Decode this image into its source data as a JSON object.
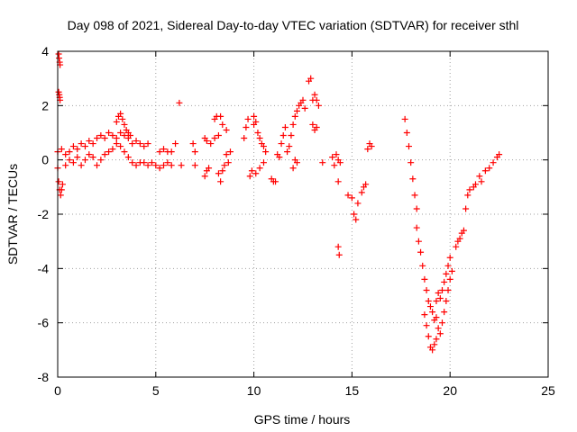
{
  "chart_data": {
    "type": "scatter",
    "title": "Day 098 of 2021, Sidereal Day-to-day VTEC variation (SDTVAR) for receiver sthl",
    "xlabel": "GPS time / hours",
    "ylabel": "SDTVAR / TECUs",
    "xlim": [
      0,
      25
    ],
    "ylim": [
      -8,
      4
    ],
    "xticks": [
      0,
      5,
      10,
      15,
      20,
      25
    ],
    "yticks": [
      -8,
      -6,
      -4,
      -2,
      0,
      2,
      4
    ],
    "grid": true,
    "marker": "+",
    "color": "#ff0000",
    "series_segments": [
      {
        "name": "start-spike-high",
        "points": [
          [
            0.05,
            3.9
          ],
          [
            0.07,
            3.75
          ],
          [
            0.1,
            3.6
          ],
          [
            0.12,
            3.5
          ]
        ]
      },
      {
        "name": "start-spike-mid",
        "points": [
          [
            0.05,
            2.5
          ],
          [
            0.08,
            2.4
          ],
          [
            0.1,
            2.3
          ],
          [
            0.12,
            2.2
          ]
        ]
      },
      {
        "name": "start-low",
        "points": [
          [
            0.0,
            -0.3
          ],
          [
            0.05,
            -0.8
          ],
          [
            0.1,
            -1.1
          ],
          [
            0.15,
            -1.3
          ],
          [
            0.2,
            -1.1
          ],
          [
            0.25,
            -0.9
          ]
        ]
      },
      {
        "name": "band-0-3",
        "points": [
          [
            0.0,
            0.3
          ],
          [
            0.2,
            0.4
          ],
          [
            0.4,
            0.2
          ],
          [
            0.6,
            0.3
          ],
          [
            0.8,
            0.5
          ],
          [
            1.0,
            0.4
          ],
          [
            1.2,
            0.6
          ],
          [
            1.4,
            0.5
          ],
          [
            1.6,
            0.7
          ],
          [
            1.8,
            0.6
          ],
          [
            2.0,
            0.8
          ],
          [
            2.2,
            0.9
          ],
          [
            2.4,
            0.8
          ],
          [
            2.6,
            1.0
          ],
          [
            2.8,
            0.9
          ],
          [
            3.0,
            0.8
          ],
          [
            3.2,
            1.0
          ],
          [
            3.4,
            0.9
          ],
          [
            3.6,
            0.8
          ],
          [
            3.8,
            0.6
          ],
          [
            4.0,
            0.7
          ],
          [
            4.2,
            0.6
          ],
          [
            4.4,
            0.5
          ],
          [
            4.6,
            0.6
          ]
        ]
      },
      {
        "name": "band-0-3-lower",
        "points": [
          [
            0.4,
            -0.2
          ],
          [
            0.6,
            0.0
          ],
          [
            0.8,
            -0.1
          ],
          [
            1.0,
            0.1
          ],
          [
            1.2,
            -0.2
          ],
          [
            1.4,
            0.0
          ],
          [
            1.6,
            0.2
          ],
          [
            1.8,
            0.1
          ],
          [
            2.0,
            -0.2
          ],
          [
            2.2,
            0.0
          ],
          [
            2.4,
            0.2
          ],
          [
            2.6,
            0.3
          ],
          [
            2.8,
            0.4
          ],
          [
            3.0,
            0.6
          ],
          [
            3.2,
            0.5
          ],
          [
            3.4,
            0.3
          ],
          [
            3.6,
            0.1
          ],
          [
            3.8,
            -0.1
          ],
          [
            4.0,
            -0.2
          ],
          [
            4.2,
            -0.1
          ]
        ]
      },
      {
        "name": "peak-3.2",
        "points": [
          [
            3.0,
            1.4
          ],
          [
            3.1,
            1.6
          ],
          [
            3.2,
            1.7
          ],
          [
            3.3,
            1.5
          ],
          [
            3.4,
            1.3
          ],
          [
            3.5,
            1.1
          ],
          [
            3.6,
            1.0
          ],
          [
            3.7,
            0.9
          ]
        ]
      },
      {
        "name": "band-4-6",
        "points": [
          [
            4.4,
            -0.1
          ],
          [
            4.6,
            -0.2
          ],
          [
            4.8,
            -0.1
          ],
          [
            5.0,
            -0.2
          ],
          [
            5.2,
            -0.3
          ],
          [
            5.4,
            -0.2
          ],
          [
            5.6,
            -0.1
          ],
          [
            5.8,
            -0.2
          ],
          [
            5.2,
            0.3
          ],
          [
            5.4,
            0.4
          ],
          [
            5.6,
            0.3
          ],
          [
            5.8,
            0.3
          ],
          [
            6.0,
            0.6
          ]
        ]
      },
      {
        "name": "isolated-6.2",
        "points": [
          [
            6.2,
            2.1
          ],
          [
            6.3,
            -0.2
          ]
        ]
      },
      {
        "name": "band-6.8-8.8",
        "points": [
          [
            6.9,
            0.6
          ],
          [
            7.0,
            0.3
          ],
          [
            7.0,
            -0.2
          ],
          [
            7.5,
            -0.6
          ],
          [
            7.6,
            -0.4
          ],
          [
            7.7,
            -0.3
          ],
          [
            7.5,
            0.8
          ],
          [
            7.6,
            0.7
          ],
          [
            7.8,
            0.6
          ],
          [
            8.0,
            0.8
          ],
          [
            8.2,
            0.9
          ],
          [
            8.4,
            1.3
          ],
          [
            8.6,
            1.1
          ],
          [
            8.2,
            -0.5
          ],
          [
            8.3,
            -0.8
          ],
          [
            8.4,
            -0.4
          ],
          [
            8.5,
            -0.2
          ],
          [
            8.6,
            0.2
          ],
          [
            8.7,
            -0.1
          ],
          [
            8.8,
            0.3
          ],
          [
            8.0,
            1.5
          ],
          [
            8.1,
            1.6
          ],
          [
            8.3,
            1.6
          ]
        ]
      },
      {
        "name": "band-9.5-11",
        "points": [
          [
            9.5,
            0.8
          ],
          [
            9.6,
            1.2
          ],
          [
            9.7,
            1.5
          ],
          [
            9.8,
            -0.6
          ],
          [
            9.9,
            -0.4
          ],
          [
            10.0,
            1.6
          ],
          [
            10.0,
            1.3
          ],
          [
            10.1,
            1.4
          ],
          [
            10.2,
            1.0
          ],
          [
            10.3,
            0.8
          ],
          [
            10.4,
            0.6
          ],
          [
            10.5,
            0.5
          ],
          [
            10.6,
            0.3
          ],
          [
            10.1,
            -0.5
          ],
          [
            10.3,
            -0.3
          ],
          [
            10.5,
            -0.1
          ]
        ]
      },
      {
        "name": "band-11-12.5",
        "points": [
          [
            10.9,
            -0.7
          ],
          [
            11.0,
            -0.8
          ],
          [
            11.1,
            -0.8
          ],
          [
            11.2,
            0.2
          ],
          [
            11.3,
            0.1
          ],
          [
            11.4,
            0.6
          ],
          [
            11.5,
            0.9
          ],
          [
            11.6,
            1.2
          ],
          [
            11.7,
            0.3
          ],
          [
            11.8,
            0.5
          ],
          [
            11.9,
            0.9
          ],
          [
            12.0,
            1.3
          ],
          [
            12.1,
            1.6
          ],
          [
            12.2,
            1.8
          ],
          [
            12.3,
            2.0
          ],
          [
            12.4,
            2.1
          ],
          [
            12.5,
            2.2
          ],
          [
            12.6,
            1.9
          ],
          [
            12.0,
            -0.3
          ],
          [
            12.1,
            0.0
          ],
          [
            12.2,
            -0.1
          ]
        ]
      },
      {
        "name": "peak-12.8",
        "points": [
          [
            12.8,
            2.9
          ],
          [
            12.9,
            3.0
          ],
          [
            13.0,
            2.2
          ],
          [
            13.1,
            2.4
          ],
          [
            13.2,
            2.2
          ],
          [
            13.3,
            2.0
          ],
          [
            13.0,
            1.3
          ],
          [
            13.1,
            1.1
          ],
          [
            13.2,
            1.2
          ]
        ]
      },
      {
        "name": "isolated-13.5",
        "points": [
          [
            13.5,
            -0.1
          ]
        ]
      },
      {
        "name": "band-14",
        "points": [
          [
            14.0,
            0.1
          ],
          [
            14.1,
            -0.2
          ],
          [
            14.2,
            0.2
          ],
          [
            14.3,
            0.0
          ],
          [
            14.4,
            -0.1
          ],
          [
            14.3,
            -0.8
          ],
          [
            14.3,
            -3.2
          ],
          [
            14.35,
            -3.5
          ]
        ]
      },
      {
        "name": "band-14.8-16",
        "points": [
          [
            14.8,
            -1.3
          ],
          [
            15.0,
            -1.4
          ],
          [
            15.1,
            -2.0
          ],
          [
            15.2,
            -2.2
          ],
          [
            15.3,
            -1.6
          ],
          [
            15.5,
            -1.2
          ],
          [
            15.6,
            -1.0
          ],
          [
            15.7,
            -0.9
          ],
          [
            15.8,
            0.4
          ],
          [
            15.9,
            0.6
          ],
          [
            16.0,
            0.5
          ]
        ]
      },
      {
        "name": "descending-arm",
        "points": [
          [
            17.7,
            1.5
          ],
          [
            17.8,
            1.0
          ],
          [
            17.9,
            0.5
          ],
          [
            18.0,
            -0.1
          ],
          [
            18.1,
            -0.7
          ],
          [
            18.2,
            -1.3
          ],
          [
            18.3,
            -1.8
          ],
          [
            18.3,
            -2.5
          ],
          [
            18.4,
            -3.0
          ],
          [
            18.5,
            -3.4
          ],
          [
            18.6,
            -3.9
          ],
          [
            18.7,
            -4.4
          ],
          [
            18.8,
            -4.8
          ],
          [
            18.9,
            -5.2
          ],
          [
            18.7,
            -5.7
          ],
          [
            18.8,
            -6.1
          ],
          [
            18.9,
            -6.5
          ],
          [
            19.0,
            -6.9
          ],
          [
            19.1,
            -7.0
          ],
          [
            19.2,
            -6.8
          ],
          [
            19.3,
            -6.6
          ]
        ]
      },
      {
        "name": "trough-cluster",
        "points": [
          [
            19.0,
            -5.4
          ],
          [
            19.1,
            -5.6
          ],
          [
            19.2,
            -5.9
          ],
          [
            19.3,
            -5.8
          ],
          [
            19.4,
            -6.2
          ],
          [
            19.5,
            -6.4
          ],
          [
            19.6,
            -6.0
          ],
          [
            19.7,
            -5.6
          ],
          [
            19.8,
            -5.2
          ],
          [
            19.9,
            -4.8
          ],
          [
            20.0,
            -4.4
          ],
          [
            20.1,
            -4.1
          ],
          [
            19.3,
            -5.2
          ],
          [
            19.4,
            -4.9
          ],
          [
            19.5,
            -5.1
          ],
          [
            19.6,
            -4.8
          ],
          [
            19.7,
            -4.5
          ],
          [
            19.8,
            -4.2
          ],
          [
            19.9,
            -3.9
          ],
          [
            20.0,
            -3.6
          ]
        ]
      },
      {
        "name": "recovery",
        "points": [
          [
            20.3,
            -3.2
          ],
          [
            20.4,
            -3.0
          ],
          [
            20.5,
            -2.9
          ],
          [
            20.6,
            -2.7
          ],
          [
            20.7,
            -2.6
          ],
          [
            20.8,
            -1.8
          ],
          [
            20.9,
            -1.3
          ],
          [
            21.0,
            -1.1
          ],
          [
            21.2,
            -1.0
          ],
          [
            21.3,
            -0.9
          ],
          [
            21.5,
            -0.6
          ],
          [
            21.6,
            -0.8
          ],
          [
            21.8,
            -0.4
          ],
          [
            22.0,
            -0.3
          ],
          [
            22.2,
            -0.1
          ],
          [
            22.4,
            0.1
          ],
          [
            22.5,
            0.2
          ]
        ]
      }
    ]
  }
}
